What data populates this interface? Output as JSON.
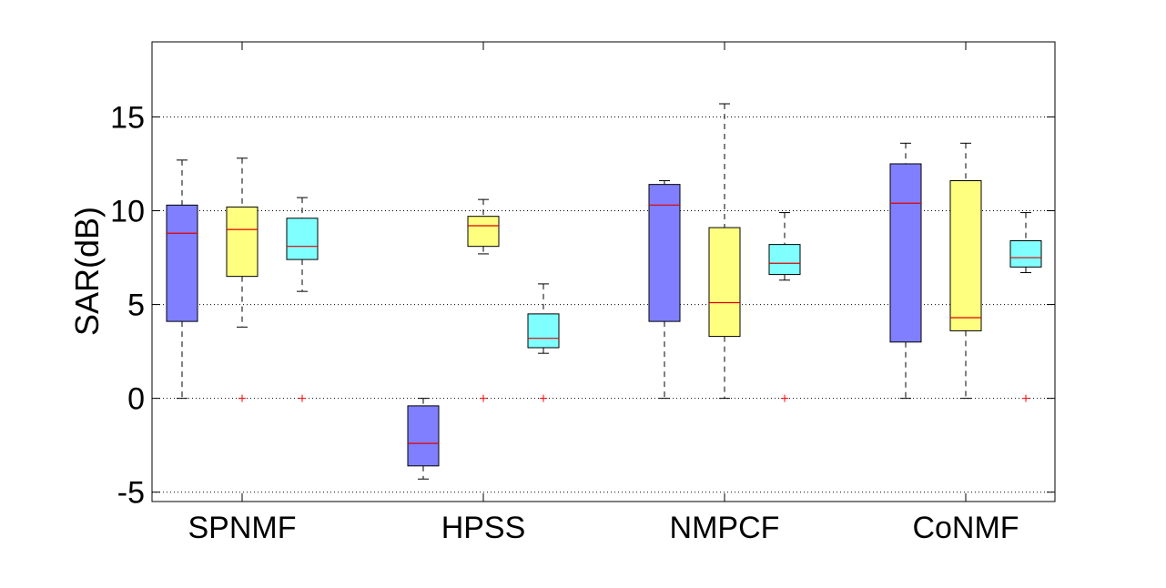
{
  "chart_data": {
    "type": "box",
    "title": "",
    "xlabel": "",
    "ylabel": "SAR(dB)",
    "ylim": [
      -5.5,
      19
    ],
    "yticks": [
      -5,
      0,
      5,
      10,
      15
    ],
    "grid": "horizontal dotted",
    "categories": [
      "SPNMF",
      "HPSS",
      "NMPCF",
      "CoNMF"
    ],
    "series": [
      {
        "color": "#7f7fff",
        "boxes": [
          {
            "whisker_low": 0.0,
            "q1": 4.1,
            "median": 8.8,
            "q3": 10.3,
            "whisker_high": 12.7,
            "outliers": []
          },
          {
            "whisker_low": -4.3,
            "q1": -3.6,
            "median": -2.4,
            "q3": -0.4,
            "whisker_high": 0.0,
            "outliers": []
          },
          {
            "whisker_low": 0.0,
            "q1": 4.1,
            "median": 10.3,
            "q3": 11.4,
            "whisker_high": 11.6,
            "outliers": []
          },
          {
            "whisker_low": 0.0,
            "q1": 3.0,
            "median": 10.4,
            "q3": 12.5,
            "whisker_high": 13.6,
            "outliers": []
          }
        ]
      },
      {
        "color": "#ffff7f",
        "boxes": [
          {
            "whisker_low": 3.8,
            "q1": 6.5,
            "median": 9.0,
            "q3": 10.2,
            "whisker_high": 12.8,
            "outliers": [
              0.0
            ]
          },
          {
            "whisker_low": 7.7,
            "q1": 8.1,
            "median": 9.2,
            "q3": 9.7,
            "whisker_high": 10.6,
            "outliers": [
              0.0
            ]
          },
          {
            "whisker_low": 0.0,
            "q1": 3.3,
            "median": 5.1,
            "q3": 9.1,
            "whisker_high": 15.7,
            "outliers": []
          },
          {
            "whisker_low": 0.0,
            "q1": 3.6,
            "median": 4.3,
            "q3": 11.6,
            "whisker_high": 13.6,
            "outliers": []
          }
        ]
      },
      {
        "color": "#7fffff",
        "boxes": [
          {
            "whisker_low": 5.7,
            "q1": 7.4,
            "median": 8.1,
            "q3": 9.6,
            "whisker_high": 10.7,
            "outliers": [
              0.0
            ]
          },
          {
            "whisker_low": 2.4,
            "q1": 2.7,
            "median": 3.2,
            "q3": 4.5,
            "whisker_high": 6.1,
            "outliers": [
              0.0
            ]
          },
          {
            "whisker_low": 6.3,
            "q1": 6.6,
            "median": 7.2,
            "q3": 8.2,
            "whisker_high": 9.9,
            "outliers": [
              0.0
            ]
          },
          {
            "whisker_low": 6.7,
            "q1": 7.0,
            "median": 7.5,
            "q3": 8.4,
            "whisker_high": 9.9,
            "outliers": [
              0.0
            ]
          }
        ]
      }
    ]
  }
}
